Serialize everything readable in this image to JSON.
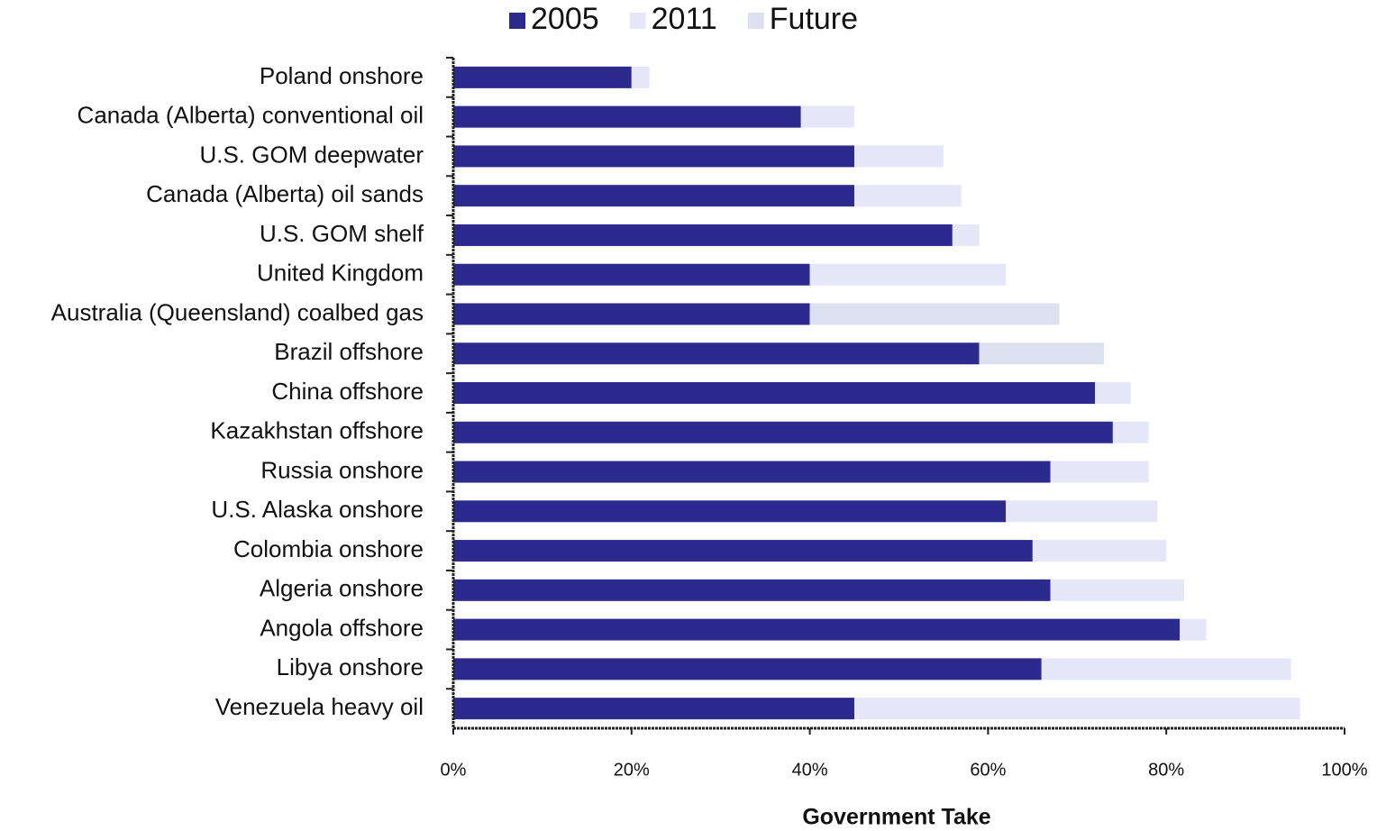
{
  "chart_data": {
    "type": "stacked-barh",
    "xlabel": "Government Take",
    "categories": [
      "Poland onshore",
      "Canada (Alberta) conventional oil",
      "U.S. GOM deepwater",
      "Canada (Alberta) oil sands",
      "U.S. GOM shelf",
      "United Kingdom",
      "Australia (Queensland) coalbed gas",
      "Brazil offshore",
      "China offshore",
      "Kazakhstan offshore",
      "Russia onshore",
      "U.S. Alaska onshore",
      "Colombia onshore",
      "Algeria onshore",
      "Angola offshore",
      "Libya onshore",
      "Venezuela heavy oil"
    ],
    "series": [
      {
        "name": "2005",
        "color": "#2d2a8e",
        "values": [
          20,
          39,
          45,
          45,
          56,
          40,
          40,
          59,
          72,
          74,
          67,
          62,
          65,
          67,
          81.5,
          66,
          45
        ]
      },
      {
        "name": "2011",
        "color": "#e6e6f9",
        "values": [
          2,
          6,
          10,
          12,
          3,
          22,
          null,
          null,
          4,
          4,
          11,
          17,
          15,
          15,
          3,
          28,
          50
        ]
      },
      {
        "name": "Future",
        "color": "#dbe2ef",
        "values": [
          null,
          null,
          null,
          null,
          null,
          null,
          28,
          14,
          null,
          null,
          null,
          null,
          null,
          null,
          null,
          null,
          null
        ]
      }
    ],
    "xlim": [
      0,
      100
    ],
    "xticks": [
      {
        "value": 0,
        "label": "0%"
      },
      {
        "value": 20,
        "label": "20%"
      },
      {
        "value": 40,
        "label": "40%"
      },
      {
        "value": 60,
        "label": "60%"
      },
      {
        "value": 80,
        "label": "80%"
      },
      {
        "value": 100,
        "label": "100%"
      }
    ],
    "legend": "top"
  }
}
